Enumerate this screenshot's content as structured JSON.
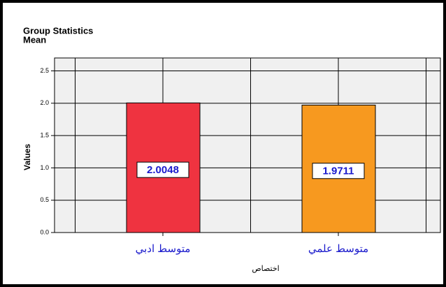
{
  "chart_data": {
    "type": "bar",
    "title": "Group Statistics",
    "subtitle": "Mean",
    "y_label": "Values",
    "x_label": "اختصاص",
    "categories": [
      "متوسط ادبي",
      "متوسط علمي"
    ],
    "series": [
      {
        "name": "Mean",
        "colors": [
          "#ef3340",
          "#f7991f"
        ],
        "values": [
          2.0048,
          1.9711
        ]
      }
    ],
    "ylim": [
      0,
      2.7
    ],
    "yticks": [
      {
        "value": 0,
        "label": "0.0"
      },
      0.5,
      {
        "value": 1,
        "label": "1.0"
      },
      1.5,
      {
        "value": 2,
        "label": "2.0"
      },
      2.5
    ],
    "grid": true
  }
}
